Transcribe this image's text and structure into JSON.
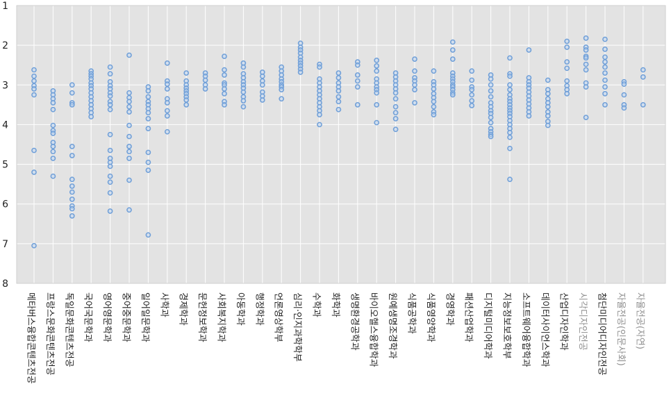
{
  "colors": {
    "plot_bg": "#e3e3e3",
    "grid": "#ffffff",
    "point_stroke": "#6f9fd8",
    "point_fill": "#b9d1ee",
    "label_normal": "#222222",
    "label_muted": "#8f8f8f"
  },
  "chart_data": {
    "type": "scatter",
    "title": "",
    "xlabel": "",
    "ylabel": "",
    "ylim": [
      1,
      8
    ],
    "y_inverted": true,
    "y_ticks": [
      "1",
      "2",
      "3",
      "4",
      "5",
      "6",
      "7",
      "8"
    ],
    "grid": true,
    "series": [
      {
        "name": "메타버스융합콘텐츠전공",
        "muted": false,
        "values": [
          2.62,
          2.78,
          2.9,
          3.02,
          3.1,
          3.25,
          4.65,
          5.2,
          7.05
        ]
      },
      {
        "name": "프랑스문화콘텐츠전공",
        "muted": false,
        "values": [
          3.15,
          3.25,
          3.35,
          3.45,
          3.62,
          4.02,
          4.15,
          4.22,
          4.45,
          4.55,
          4.68,
          4.85,
          5.3
        ]
      },
      {
        "name": "독일문화콘텐츠전공",
        "muted": false,
        "values": [
          3.0,
          3.2,
          3.45,
          3.5,
          4.55,
          4.78,
          5.38,
          5.55,
          5.7,
          5.88,
          6.05,
          6.12,
          6.3
        ]
      },
      {
        "name": "국어국문학과",
        "muted": false,
        "values": [
          2.65,
          2.72,
          2.78,
          2.85,
          2.95,
          3.02,
          3.1,
          3.2,
          3.3,
          3.4,
          3.5,
          3.6,
          3.7,
          3.8
        ]
      },
      {
        "name": "영어영문학과",
        "muted": false,
        "values": [
          2.55,
          2.72,
          2.92,
          3.02,
          3.1,
          3.2,
          3.28,
          3.42,
          3.5,
          3.62,
          4.25,
          4.65,
          4.85,
          4.95,
          5.05,
          5.3,
          5.45,
          5.72,
          6.18
        ]
      },
      {
        "name": "중어중문학과",
        "muted": false,
        "values": [
          2.25,
          3.2,
          3.32,
          3.42,
          3.55,
          3.68,
          4.02,
          4.3,
          4.55,
          4.68,
          4.85,
          5.4,
          6.15
        ]
      },
      {
        "name": "일어일문학과",
        "muted": false,
        "values": [
          3.05,
          3.15,
          3.3,
          3.42,
          3.5,
          3.6,
          3.7,
          3.85,
          4.1,
          4.7,
          4.95,
          5.15,
          6.78
        ]
      },
      {
        "name": "사학과",
        "muted": false,
        "values": [
          2.45,
          2.9,
          2.98,
          3.1,
          3.35,
          3.45,
          3.65,
          3.78,
          4.18
        ]
      },
      {
        "name": "경제학과",
        "muted": false,
        "values": [
          2.7,
          2.9,
          3.0,
          3.08,
          3.15,
          3.22,
          3.3,
          3.38,
          3.5
        ]
      },
      {
        "name": "문헌정보학과",
        "muted": false,
        "values": [
          2.7,
          2.78,
          2.88,
          3.0,
          3.1
        ]
      },
      {
        "name": "사회복지학과",
        "muted": false,
        "values": [
          2.28,
          2.62,
          2.75,
          2.95,
          3.0,
          3.1,
          3.22,
          3.42,
          3.5
        ]
      },
      {
        "name": "아동학과",
        "muted": false,
        "values": [
          2.45,
          2.55,
          2.72,
          2.82,
          2.92,
          3.0,
          3.08,
          3.18,
          3.3,
          3.4,
          3.55
        ]
      },
      {
        "name": "행정학과",
        "muted": false,
        "values": [
          2.68,
          2.78,
          2.9,
          3.0,
          3.18,
          3.28,
          3.38
        ]
      },
      {
        "name": "언론영상학부",
        "muted": false,
        "values": [
          2.55,
          2.65,
          2.75,
          2.85,
          2.92,
          3.0,
          3.05,
          3.12,
          3.35
        ]
      },
      {
        "name": "심리·인지과학학부",
        "muted": false,
        "values": [
          1.95,
          2.05,
          2.12,
          2.2,
          2.3,
          2.38,
          2.45,
          2.52,
          2.6,
          2.68
        ]
      },
      {
        "name": "수학과",
        "muted": false,
        "values": [
          2.48,
          2.55,
          2.85,
          2.95,
          3.05,
          3.15,
          3.25,
          3.35,
          3.45,
          3.55,
          3.65,
          3.75,
          4.0
        ]
      },
      {
        "name": "화학과",
        "muted": false,
        "values": [
          2.7,
          2.82,
          2.95,
          3.05,
          3.15,
          3.3,
          3.42,
          3.62
        ]
      },
      {
        "name": "생명환경공학과",
        "muted": false,
        "values": [
          2.42,
          2.5,
          2.75,
          2.9,
          3.05,
          3.5
        ]
      },
      {
        "name": "바이오헬스융합학과",
        "muted": false,
        "values": [
          2.38,
          2.52,
          2.65,
          2.85,
          2.95,
          3.05,
          3.12,
          3.2,
          3.5,
          3.95
        ]
      },
      {
        "name": "원예생명조경학과",
        "muted": false,
        "values": [
          2.7,
          2.8,
          2.9,
          3.0,
          3.1,
          3.2,
          3.35,
          3.55,
          3.7,
          3.85,
          4.12
        ]
      },
      {
        "name": "식품공학과",
        "muted": false,
        "values": [
          2.35,
          2.65,
          2.82,
          2.9,
          3.0,
          3.12,
          3.45
        ]
      },
      {
        "name": "식품영양학과",
        "muted": false,
        "values": [
          2.65,
          2.92,
          3.0,
          3.1,
          3.22,
          3.32,
          3.42,
          3.55,
          3.68,
          3.75
        ]
      },
      {
        "name": "경영학과",
        "muted": false,
        "values": [
          1.92,
          2.12,
          2.35,
          2.7,
          2.78,
          2.85,
          2.92,
          3.0,
          3.05,
          3.12,
          3.2,
          3.25
        ]
      },
      {
        "name": "패션산업학과",
        "muted": false,
        "values": [
          2.65,
          2.88,
          3.05,
          3.12,
          3.25,
          3.4,
          3.52
        ]
      },
      {
        "name": "디지털미디어학과",
        "muted": false,
        "values": [
          2.75,
          2.85,
          3.0,
          3.15,
          3.3,
          3.45,
          3.55,
          3.65,
          3.72,
          3.82,
          3.95,
          4.1,
          4.18,
          4.25,
          4.3
        ]
      },
      {
        "name": "지능정보보호학부",
        "muted": false,
        "values": [
          2.32,
          2.72,
          2.78,
          3.0,
          3.12,
          3.25,
          3.35,
          3.42,
          3.5,
          3.58,
          3.65,
          3.72,
          3.8,
          3.9,
          4.0,
          4.1,
          4.2,
          4.32,
          4.6,
          5.38
        ]
      },
      {
        "name": "소프트웨어융합학과",
        "muted": false,
        "values": [
          2.12,
          2.82,
          2.92,
          3.0,
          3.08,
          3.18,
          3.28,
          3.38,
          3.48,
          3.58,
          3.68,
          3.78
        ]
      },
      {
        "name": "데이터사이언스학과",
        "muted": false,
        "values": [
          2.88,
          3.12,
          3.22,
          3.35,
          3.45,
          3.55,
          3.68,
          3.78,
          3.92,
          4.02
        ]
      },
      {
        "name": "산업디자인학과",
        "muted": false,
        "values": [
          1.9,
          2.05,
          2.42,
          2.58,
          2.9,
          3.02,
          3.12,
          3.22
        ]
      },
      {
        "name": "시각디자인전공",
        "muted": true,
        "values": [
          1.82,
          2.05,
          2.12,
          2.28,
          2.32,
          2.48,
          2.62,
          2.95,
          3.05,
          3.82
        ]
      },
      {
        "name": "첨단미디어디자인전공",
        "muted": false,
        "values": [
          1.85,
          2.1,
          2.3,
          2.42,
          2.55,
          2.7,
          2.88,
          3.05,
          3.22,
          3.5
        ]
      },
      {
        "name": "자율전공(인문사회)",
        "muted": true,
        "values": [
          2.92,
          2.98,
          3.25,
          3.5,
          3.58
        ]
      },
      {
        "name": "자율전공(자연)",
        "muted": true,
        "values": [
          2.62,
          2.8,
          3.5
        ]
      }
    ]
  }
}
